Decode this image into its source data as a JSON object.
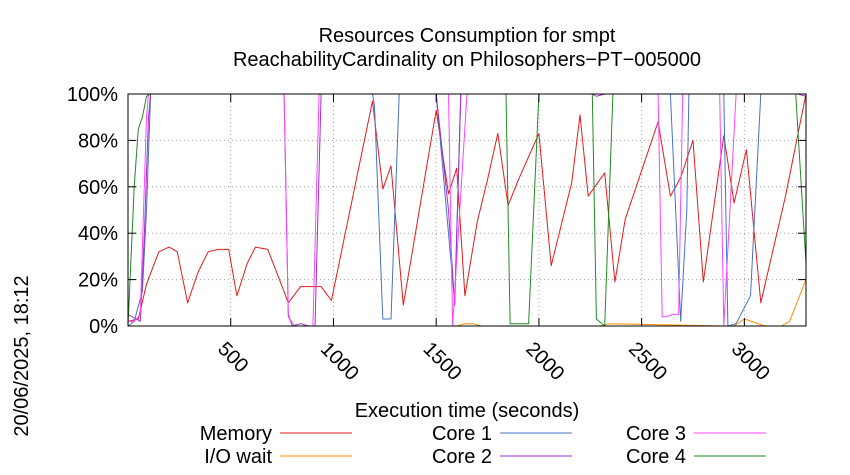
{
  "chart_data": {
    "type": "line",
    "title_line1": "Resources Consumption for smpt",
    "title_line2": "ReachabilityCardinality on Philosophers−PT−005000",
    "xlabel": "Execution time (seconds)",
    "ylabel": "",
    "side_label": "20/06/2025, 18:12",
    "xlim": [
      0,
      3300
    ],
    "ylim": [
      0,
      100
    ],
    "x_ticks": [
      500,
      1000,
      1500,
      2000,
      2500,
      3000
    ],
    "x_tick_labels": [
      "500",
      "1000",
      "1500",
      "2000",
      "2500",
      "3000"
    ],
    "y_ticks": [
      0,
      20,
      40,
      60,
      80,
      100
    ],
    "y_tick_labels": [
      "0%",
      "20%",
      "40%",
      "60%",
      "80%",
      "100%"
    ],
    "grid": true,
    "legend_position": "bottom",
    "series": [
      {
        "name": "Memory",
        "color": "#e41a1c",
        "x": [
          0,
          50,
          90,
          150,
          200,
          240,
          290,
          340,
          390,
          440,
          490,
          530,
          580,
          620,
          680,
          720,
          780,
          840,
          900,
          940,
          990,
          1190,
          1240,
          1280,
          1340,
          1500,
          1560,
          1600,
          1640,
          1700,
          1750,
          1800,
          1850,
          1900,
          2000,
          2060,
          2160,
          2200,
          2240,
          2320,
          2370,
          2420,
          2580,
          2640,
          2690,
          2750,
          2800,
          2900,
          2950,
          3010,
          3080,
          3200,
          3300
        ],
        "y": [
          2,
          3,
          18,
          32,
          34,
          32,
          10,
          23,
          32,
          33,
          33,
          13,
          27,
          34,
          33,
          24,
          10,
          17,
          17,
          17,
          11,
          97,
          59,
          69,
          9,
          93,
          57,
          68,
          13,
          45,
          63,
          83,
          52,
          63,
          83,
          26,
          62,
          91,
          56,
          66,
          19,
          46,
          88,
          56,
          64,
          80,
          19,
          82,
          53,
          76,
          10,
          56,
          100
        ]
      },
      {
        "name": "I/O wait",
        "color": "#ff8c00",
        "x": [
          0,
          1600,
          1640,
          1680,
          1720,
          2300,
          2340,
          2900,
          2950,
          3000,
          3100,
          3180,
          3220,
          3300
        ],
        "y": [
          0,
          0,
          1,
          1,
          0,
          0,
          1,
          0,
          0,
          3,
          0,
          0,
          2,
          20
        ]
      },
      {
        "name": "Core 1",
        "color": "#4472c4",
        "x": [
          0,
          30,
          70,
          90,
          110,
          1190,
          1200,
          1240,
          1280,
          1320,
          1340,
          1500,
          1560,
          1590,
          1620,
          1640,
          2580,
          2600,
          2640,
          2690,
          2720,
          2730,
          2800,
          2900,
          2920,
          2960,
          3030,
          3080,
          3100,
          3300
        ],
        "y": [
          0,
          2,
          15,
          50,
          100,
          100,
          95,
          3,
          3,
          100,
          100,
          100,
          40,
          10,
          100,
          100,
          100,
          100,
          100,
          2,
          50,
          100,
          100,
          100,
          0,
          1,
          13,
          100,
          100,
          100
        ]
      },
      {
        "name": "Core 2",
        "color": "#9932cc",
        "x": [
          0,
          40,
          60,
          80,
          100,
          110,
          740,
          760,
          780,
          800,
          840,
          880,
          910,
          940,
          960,
          1190,
          1200,
          1300,
          1340,
          1500,
          1560,
          1590,
          1620,
          2260,
          2280,
          2320,
          2360,
          2800,
          2840,
          2880,
          2900,
          3260,
          3300
        ],
        "y": [
          5,
          3,
          2,
          40,
          90,
          100,
          100,
          100,
          5,
          0,
          1,
          0,
          0,
          100,
          100,
          100,
          100,
          100,
          100,
          100,
          50,
          9,
          100,
          100,
          99,
          100,
          100,
          100,
          100,
          100,
          100,
          100,
          99
        ]
      },
      {
        "name": "Core 3",
        "color": "#ff44ff",
        "x": [
          0,
          30,
          60,
          90,
          100,
          110,
          740,
          760,
          780,
          810,
          820,
          900,
          930,
          960,
          1560,
          1580,
          1650,
          1700,
          2100,
          2230,
          2250,
          2300,
          2500,
          2580,
          2600,
          2620,
          2650,
          2680,
          2700,
          2850,
          2880,
          2900,
          2960,
          3300
        ],
        "y": [
          2,
          2,
          5,
          90,
          100,
          100,
          100,
          100,
          4,
          0,
          0,
          0,
          100,
          100,
          100,
          0,
          100,
          100,
          100,
          100,
          100,
          100,
          100,
          100,
          4,
          4,
          5,
          5,
          100,
          100,
          100,
          0,
          100,
          100
        ]
      },
      {
        "name": "Core 4",
        "color": "#228b22",
        "x": [
          0,
          30,
          50,
          70,
          90,
          110,
          1840,
          1860,
          1900,
          1950,
          2000,
          2260,
          2280,
          2320,
          2360,
          2380,
          2420,
          3250,
          3300
        ],
        "y": [
          0,
          60,
          85,
          90,
          99,
          100,
          100,
          1,
          1,
          1,
          100,
          100,
          3,
          0,
          100,
          100,
          100,
          100,
          27
        ]
      }
    ]
  }
}
